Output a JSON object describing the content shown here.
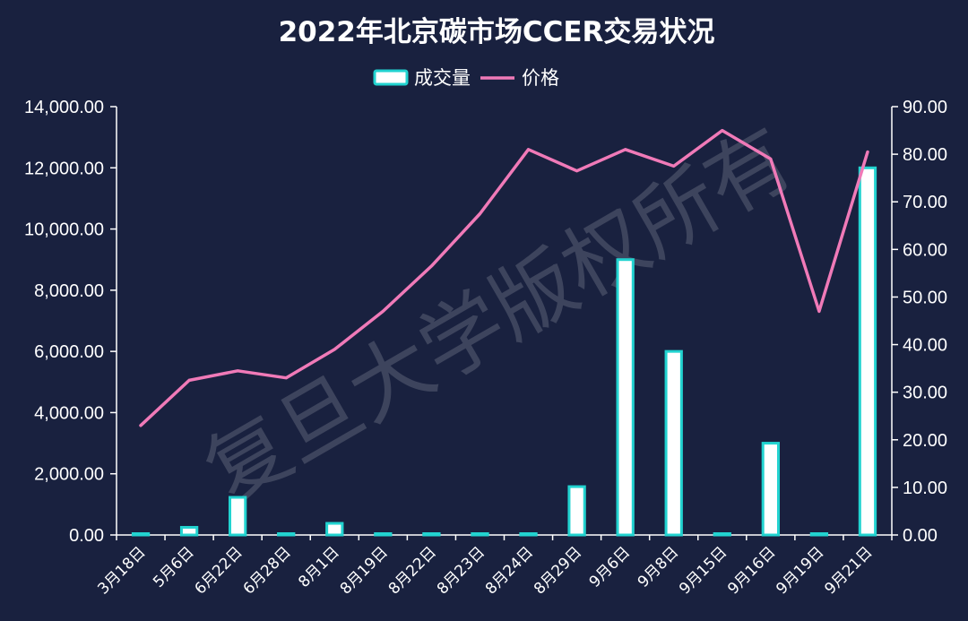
{
  "chart_data": {
    "type": "bar",
    "title": "2022年北京碳市场CCER交易状况",
    "categories": [
      "3月18日",
      "5月6日",
      "6月22日",
      "6月28日",
      "8月1日",
      "8月19日",
      "8月22日",
      "8月23日",
      "8月24日",
      "8月29日",
      "9月6日",
      "9月8日",
      "9月15日",
      "9月16日",
      "9月19日",
      "9月21日"
    ],
    "series": [
      {
        "name": "成交量",
        "type": "bar",
        "axis": "left",
        "color": "#ffffff",
        "edge_color": "#22d3d0",
        "values": [
          30,
          250,
          1230,
          20,
          380,
          15,
          20,
          20,
          25,
          1580,
          9000,
          6000,
          30,
          3000,
          20,
          12000
        ]
      },
      {
        "name": "价格",
        "type": "line",
        "axis": "right",
        "color": "#f07ab8",
        "values": [
          23,
          32.5,
          34.5,
          33,
          39,
          47,
          56.5,
          67.5,
          81,
          76.5,
          81,
          77.5,
          85,
          79,
          47,
          80.5
        ]
      }
    ],
    "y_left": {
      "ylim": [
        0,
        14000
      ],
      "ticks": [
        0,
        2000,
        4000,
        6000,
        8000,
        10000,
        12000,
        14000
      ],
      "tick_labels": [
        "0.00",
        "2,000.00",
        "4,000.00",
        "6,000.00",
        "8,000.00",
        "10,000.00",
        "12,000.00",
        "14,000.00"
      ]
    },
    "y_right": {
      "ylim": [
        0,
        90
      ],
      "ticks": [
        0,
        10,
        20,
        30,
        40,
        50,
        60,
        70,
        80,
        90
      ],
      "tick_labels": [
        "0.00",
        "10.00",
        "20.00",
        "30.00",
        "40.00",
        "50.00",
        "60.00",
        "70.00",
        "80.00",
        "90.00"
      ]
    },
    "legend_position": "top-center",
    "grid": false,
    "watermark": "复旦大学版权所有",
    "background": "#19213f",
    "axis_color": "#ffffff"
  }
}
